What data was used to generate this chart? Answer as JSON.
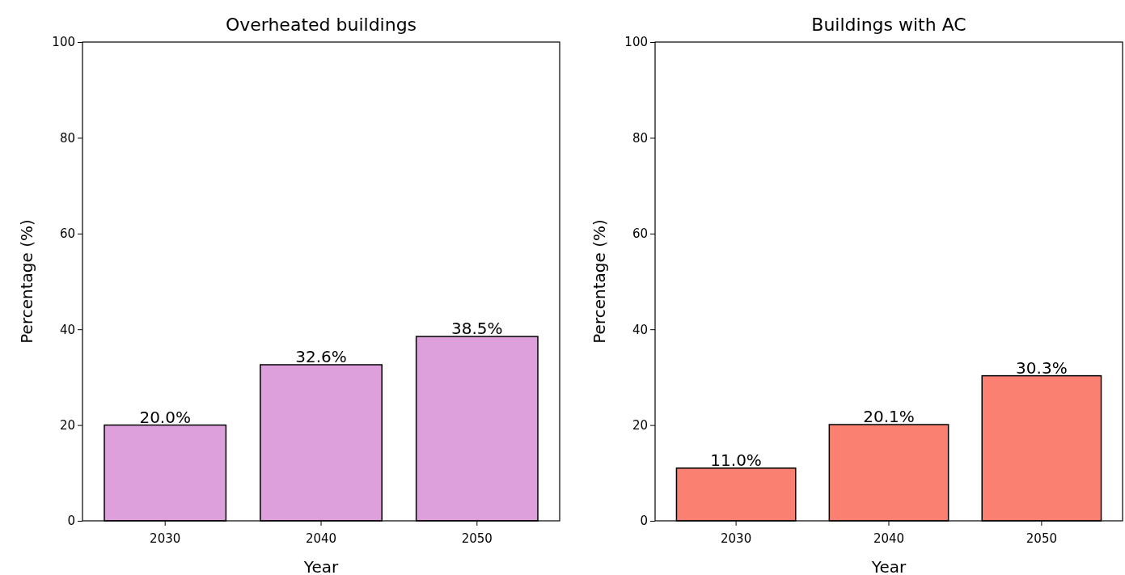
{
  "chart_data": [
    {
      "type": "bar",
      "title": "Overheated buildings",
      "xlabel": "Year",
      "ylabel": "Percentage (%)",
      "categories": [
        "2030",
        "2040",
        "2050"
      ],
      "values": [
        20.0,
        32.6,
        38.5
      ],
      "color": "#dda0dd",
      "value_labels": [
        "20.0%",
        "32.6%",
        "38.5%"
      ],
      "ylim": [
        0,
        100
      ],
      "yticks": [
        0,
        20,
        40,
        60,
        80,
        100
      ]
    },
    {
      "type": "bar",
      "title": "Buildings with AC",
      "xlabel": "Year",
      "ylabel": "Percentage (%)",
      "categories": [
        "2030",
        "2040",
        "2050"
      ],
      "values": [
        11.0,
        20.1,
        30.3
      ],
      "color": "#fa8072",
      "value_labels": [
        "11.0%",
        "20.1%",
        "30.3%"
      ],
      "ylim": [
        0,
        100
      ],
      "yticks": [
        0,
        20,
        40,
        60,
        80,
        100
      ]
    }
  ]
}
